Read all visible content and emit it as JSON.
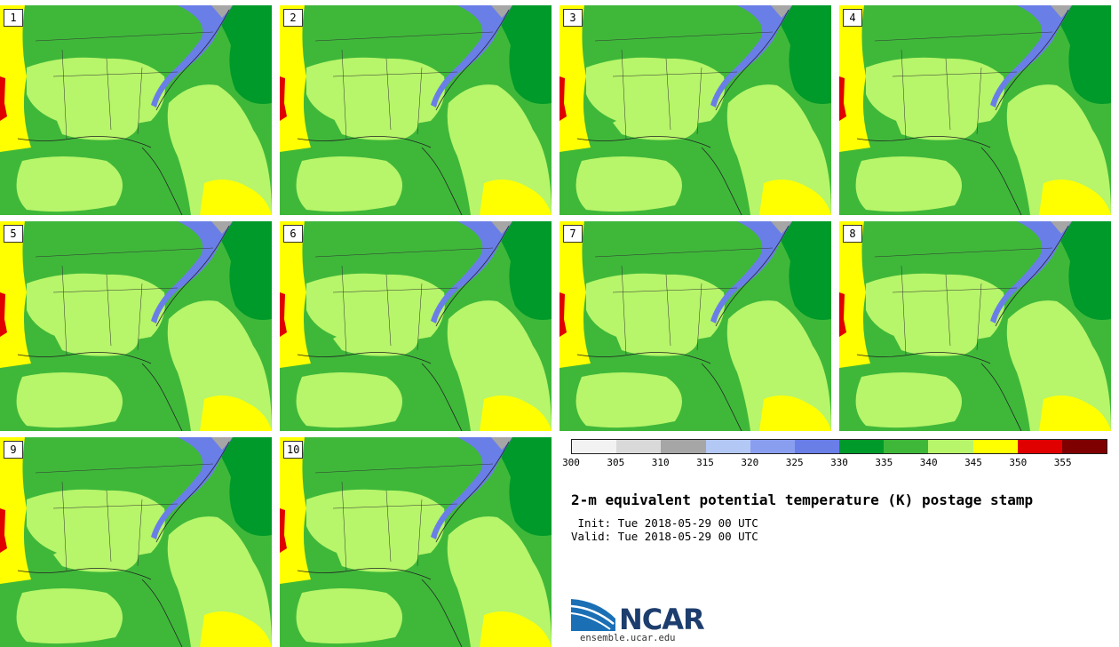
{
  "title": "2-m equivalent potential temperature (K) postage stamp",
  "init_label": " Init: Tue 2018-05-29 00 UTC",
  "valid_label": "Valid: Tue 2018-05-29 00 UTC",
  "logo": {
    "name": "NCAR",
    "url": "ensemble.ucar.edu"
  },
  "members": [
    "1",
    "2",
    "3",
    "4",
    "5",
    "6",
    "7",
    "8",
    "9",
    "10"
  ],
  "colorbar": {
    "ticks": [
      "300",
      "305",
      "310",
      "315",
      "320",
      "325",
      "330",
      "335",
      "340",
      "345",
      "350",
      "355"
    ],
    "colors": [
      "#f2f2f2",
      "#d9d9d9",
      "#a6a6a6",
      "#b4c8f5",
      "#8a9ef0",
      "#6a7ee8",
      "#009a2a",
      "#3fb83a",
      "#b7f56a",
      "#ffff00",
      "#e00000",
      "#7f0000"
    ]
  }
}
